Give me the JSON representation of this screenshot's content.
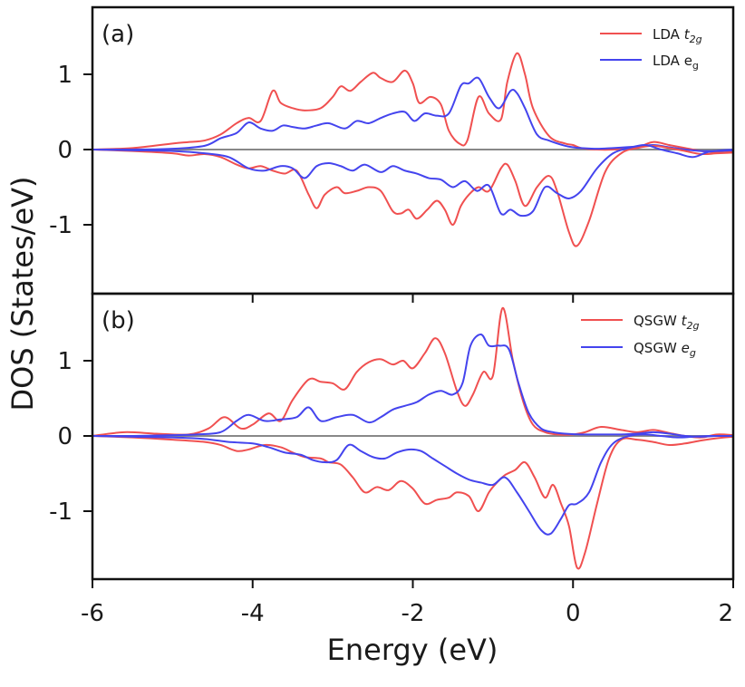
{
  "chart_data": [
    {
      "panel_label": "(a)",
      "type": "line",
      "xlim": [
        -6,
        2
      ],
      "ylim": [
        -1.85,
        1.85
      ],
      "yticks": [
        1,
        0,
        -1
      ],
      "ytick_labels": [
        "1",
        "0",
        "-1"
      ],
      "legend": {
        "placement": "top-right",
        "entries": [
          {
            "base": "LDA",
            "sub": "2g",
            "letter": "t",
            "italic": true,
            "color": "#f05050"
          },
          {
            "base": "LDA",
            "sub": "g",
            "letter": "e",
            "italic": false,
            "color": "#4444ee"
          }
        ]
      },
      "series": [
        {
          "name": "LDA t2g (up)",
          "color": "#f05050",
          "x": [
            -6.0,
            -5.5,
            -5.0,
            -4.8,
            -4.6,
            -4.4,
            -4.2,
            -4.05,
            -3.9,
            -3.75,
            -3.65,
            -3.5,
            -3.35,
            -3.15,
            -3.0,
            -2.9,
            -2.78,
            -2.65,
            -2.5,
            -2.4,
            -2.25,
            -2.1,
            -2.0,
            -1.92,
            -1.78,
            -1.65,
            -1.55,
            -1.42,
            -1.32,
            -1.18,
            -1.05,
            -0.9,
            -0.82,
            -0.7,
            -0.6,
            -0.5,
            -0.3,
            -0.1,
            0.0,
            0.1,
            0.3,
            0.5,
            0.8,
            1.0,
            1.2,
            1.4,
            1.6,
            1.8,
            2.0
          ],
          "y": [
            0.0,
            0.02,
            0.08,
            0.1,
            0.12,
            0.2,
            0.35,
            0.42,
            0.38,
            0.78,
            0.62,
            0.55,
            0.52,
            0.55,
            0.7,
            0.84,
            0.78,
            0.9,
            1.02,
            0.95,
            0.9,
            1.05,
            0.88,
            0.62,
            0.7,
            0.6,
            0.25,
            0.08,
            0.12,
            0.7,
            0.48,
            0.4,
            0.9,
            1.28,
            1.0,
            0.55,
            0.18,
            0.08,
            0.06,
            0.02,
            0.0,
            0.0,
            0.03,
            0.1,
            0.06,
            0.02,
            -0.02,
            -0.04,
            -0.03
          ]
        },
        {
          "name": "LDA eg (up)",
          "color": "#4444ee",
          "x": [
            -6.0,
            -5.5,
            -5.0,
            -4.6,
            -4.4,
            -4.2,
            -4.05,
            -3.9,
            -3.75,
            -3.62,
            -3.5,
            -3.35,
            -3.2,
            -3.05,
            -2.85,
            -2.7,
            -2.55,
            -2.4,
            -2.25,
            -2.1,
            -1.98,
            -1.85,
            -1.7,
            -1.55,
            -1.4,
            -1.3,
            -1.18,
            -1.05,
            -0.92,
            -0.78,
            -0.7,
            -0.6,
            -0.45,
            -0.3,
            -0.1,
            0.0,
            0.1,
            0.3,
            0.5,
            0.8,
            1.0,
            1.2,
            1.4,
            1.6,
            1.8,
            2.0
          ],
          "y": [
            0.0,
            0.0,
            0.01,
            0.05,
            0.15,
            0.22,
            0.36,
            0.28,
            0.25,
            0.32,
            0.3,
            0.28,
            0.32,
            0.35,
            0.28,
            0.38,
            0.35,
            0.42,
            0.48,
            0.5,
            0.38,
            0.48,
            0.45,
            0.48,
            0.85,
            0.88,
            0.95,
            0.7,
            0.55,
            0.78,
            0.75,
            0.55,
            0.2,
            0.12,
            0.05,
            0.03,
            0.02,
            0.01,
            0.02,
            0.04,
            0.06,
            0.03,
            0.0,
            -0.02,
            -0.02,
            -0.01
          ]
        },
        {
          "name": "LDA t2g (down)",
          "color": "#f05050",
          "x": [
            -6.0,
            -5.5,
            -5.0,
            -4.8,
            -4.6,
            -4.4,
            -4.2,
            -4.05,
            -3.9,
            -3.75,
            -3.6,
            -3.45,
            -3.3,
            -3.2,
            -3.1,
            -2.95,
            -2.85,
            -2.7,
            -2.55,
            -2.4,
            -2.25,
            -2.15,
            -2.05,
            -1.95,
            -1.82,
            -1.7,
            -1.6,
            -1.5,
            -1.4,
            -1.3,
            -1.18,
            -1.05,
            -0.9,
            -0.82,
            -0.72,
            -0.6,
            -0.45,
            -0.3,
            -0.2,
            -0.05,
            0.05,
            0.2,
            0.4,
            0.6,
            0.8,
            1.0,
            1.2,
            1.4,
            1.6,
            1.8,
            2.0
          ],
          "y": [
            0.0,
            -0.02,
            -0.05,
            -0.08,
            -0.06,
            -0.1,
            -0.2,
            -0.25,
            -0.22,
            -0.28,
            -0.32,
            -0.28,
            -0.6,
            -0.78,
            -0.6,
            -0.5,
            -0.58,
            -0.55,
            -0.5,
            -0.55,
            -0.82,
            -0.85,
            -0.8,
            -0.92,
            -0.8,
            -0.68,
            -0.8,
            -1.0,
            -0.75,
            -0.6,
            -0.5,
            -0.55,
            -0.25,
            -0.2,
            -0.42,
            -0.75,
            -0.5,
            -0.35,
            -0.55,
            -1.1,
            -1.28,
            -0.95,
            -0.3,
            -0.05,
            0.02,
            0.05,
            0.02,
            -0.02,
            -0.06,
            -0.05,
            -0.04
          ]
        },
        {
          "name": "LDA eg (down)",
          "color": "#4444ee",
          "x": [
            -6.0,
            -5.5,
            -5.0,
            -4.6,
            -4.3,
            -4.05,
            -3.85,
            -3.65,
            -3.5,
            -3.35,
            -3.2,
            -3.05,
            -2.9,
            -2.75,
            -2.6,
            -2.4,
            -2.25,
            -2.1,
            -1.95,
            -1.8,
            -1.65,
            -1.5,
            -1.35,
            -1.2,
            -1.05,
            -0.9,
            -0.78,
            -0.65,
            -0.5,
            -0.35,
            -0.2,
            -0.05,
            0.1,
            0.3,
            0.5,
            0.7,
            0.9,
            1.1,
            1.3,
            1.5,
            1.7,
            2.0
          ],
          "y": [
            0.0,
            -0.01,
            -0.02,
            -0.05,
            -0.1,
            -0.25,
            -0.28,
            -0.22,
            -0.25,
            -0.38,
            -0.22,
            -0.18,
            -0.22,
            -0.28,
            -0.2,
            -0.3,
            -0.22,
            -0.28,
            -0.32,
            -0.38,
            -0.4,
            -0.5,
            -0.42,
            -0.55,
            -0.48,
            -0.85,
            -0.8,
            -0.88,
            -0.82,
            -0.5,
            -0.58,
            -0.65,
            -0.55,
            -0.25,
            -0.05,
            0.02,
            0.06,
            0.0,
            -0.05,
            -0.1,
            -0.03,
            0.0
          ]
        }
      ]
    },
    {
      "panel_label": "(b)",
      "type": "line",
      "xlim": [
        -6,
        2
      ],
      "ylim": [
        -1.92,
        1.92
      ],
      "yticks": [
        1,
        0,
        -1
      ],
      "ytick_labels": [
        "1",
        "0",
        "-1"
      ],
      "xticks": [
        -6,
        -4,
        -2,
        0,
        2
      ],
      "xtick_labels": [
        "-6",
        "-4",
        "-2",
        "0",
        "2"
      ],
      "xlabel": "Energy (eV)",
      "ylabel": "DOS (States/eV)",
      "legend": {
        "placement": "top-right",
        "entries": [
          {
            "base": "QSGW",
            "sub": "2g",
            "letter": "t",
            "italic": true,
            "color": "#f05050"
          },
          {
            "base": "QSGW",
            "sub": "g",
            "letter": "e",
            "italic": true,
            "color": "#4444ee"
          }
        ]
      },
      "series": [
        {
          "name": "QSGW t2g (up)",
          "color": "#f05050",
          "x": [
            -6.0,
            -5.6,
            -5.2,
            -4.8,
            -4.55,
            -4.35,
            -4.15,
            -4.0,
            -3.8,
            -3.65,
            -3.5,
            -3.3,
            -3.15,
            -3.0,
            -2.85,
            -2.7,
            -2.55,
            -2.4,
            -2.25,
            -2.12,
            -2.0,
            -1.85,
            -1.72,
            -1.6,
            -1.45,
            -1.35,
            -1.25,
            -1.12,
            -1.0,
            -0.88,
            -0.75,
            -0.62,
            -0.5,
            -0.35,
            -0.2,
            0.0,
            0.15,
            0.35,
            0.6,
            0.8,
            1.0,
            1.2,
            1.4,
            1.6,
            1.8,
            2.0
          ],
          "y": [
            0.0,
            0.05,
            0.03,
            0.02,
            0.1,
            0.25,
            0.1,
            0.15,
            0.3,
            0.2,
            0.48,
            0.75,
            0.72,
            0.7,
            0.62,
            0.85,
            0.98,
            1.02,
            0.95,
            1.0,
            0.9,
            1.1,
            1.3,
            1.1,
            0.6,
            0.4,
            0.55,
            0.85,
            0.8,
            1.7,
            1.0,
            0.45,
            0.15,
            0.05,
            0.02,
            0.02,
            0.05,
            0.12,
            0.08,
            0.05,
            0.08,
            0.04,
            0.0,
            -0.02,
            0.02,
            0.01
          ]
        },
        {
          "name": "QSGW eg (up)",
          "color": "#4444ee",
          "x": [
            -6.0,
            -5.5,
            -5.0,
            -4.7,
            -4.4,
            -4.2,
            -4.05,
            -3.85,
            -3.65,
            -3.45,
            -3.3,
            -3.15,
            -2.95,
            -2.75,
            -2.55,
            -2.4,
            -2.25,
            -2.1,
            -1.95,
            -1.8,
            -1.65,
            -1.5,
            -1.38,
            -1.28,
            -1.15,
            -1.05,
            -0.92,
            -0.8,
            -0.68,
            -0.55,
            -0.4,
            -0.25,
            -0.1,
            0.1,
            0.3,
            0.6,
            0.8,
            1.0,
            1.2,
            1.4,
            1.6,
            1.8,
            2.0
          ],
          "y": [
            0.0,
            0.0,
            0.01,
            0.02,
            0.05,
            0.2,
            0.28,
            0.2,
            0.22,
            0.25,
            0.38,
            0.2,
            0.25,
            0.28,
            0.18,
            0.25,
            0.35,
            0.4,
            0.45,
            0.55,
            0.6,
            0.55,
            0.7,
            1.2,
            1.35,
            1.2,
            1.2,
            1.15,
            0.7,
            0.3,
            0.1,
            0.05,
            0.03,
            0.02,
            0.02,
            0.02,
            0.03,
            0.05,
            0.03,
            0.0,
            -0.01,
            0.0,
            0.0
          ]
        },
        {
          "name": "QSGW t2g (down)",
          "color": "#f05050",
          "x": [
            -6.0,
            -5.5,
            -5.0,
            -4.6,
            -4.4,
            -4.2,
            -4.05,
            -3.85,
            -3.65,
            -3.5,
            -3.35,
            -3.15,
            -3.05,
            -2.9,
            -2.75,
            -2.6,
            -2.45,
            -2.3,
            -2.15,
            -2.0,
            -1.85,
            -1.7,
            -1.55,
            -1.45,
            -1.3,
            -1.18,
            -1.05,
            -0.95,
            -0.85,
            -0.72,
            -0.6,
            -0.48,
            -0.35,
            -0.25,
            -0.15,
            -0.05,
            0.05,
            0.15,
            0.3,
            0.45,
            0.6,
            0.8,
            1.0,
            1.2,
            1.4,
            1.6,
            1.8,
            2.0
          ],
          "y": [
            0.0,
            -0.02,
            -0.05,
            -0.08,
            -0.12,
            -0.2,
            -0.18,
            -0.12,
            -0.15,
            -0.22,
            -0.28,
            -0.3,
            -0.35,
            -0.38,
            -0.55,
            -0.75,
            -0.68,
            -0.72,
            -0.6,
            -0.7,
            -0.9,
            -0.85,
            -0.82,
            -0.75,
            -0.8,
            -1.0,
            -0.75,
            -0.62,
            -0.52,
            -0.45,
            -0.35,
            -0.55,
            -0.82,
            -0.65,
            -0.9,
            -1.2,
            -1.75,
            -1.55,
            -0.9,
            -0.3,
            -0.05,
            -0.05,
            -0.08,
            -0.12,
            -0.1,
            -0.06,
            -0.03,
            -0.01
          ]
        },
        {
          "name": "QSGW eg (down)",
          "color": "#4444ee",
          "x": [
            -6.0,
            -5.5,
            -5.0,
            -4.6,
            -4.3,
            -4.0,
            -3.8,
            -3.6,
            -3.4,
            -3.25,
            -3.1,
            -2.95,
            -2.8,
            -2.65,
            -2.5,
            -2.35,
            -2.2,
            -2.05,
            -1.9,
            -1.75,
            -1.6,
            -1.45,
            -1.3,
            -1.15,
            -1.0,
            -0.85,
            -0.7,
            -0.55,
            -0.4,
            -0.28,
            -0.15,
            -0.05,
            0.05,
            0.2,
            0.35,
            0.5,
            0.7,
            0.9,
            1.1,
            1.3,
            1.5,
            1.7,
            2.0
          ],
          "y": [
            0.0,
            -0.01,
            -0.02,
            -0.04,
            -0.08,
            -0.1,
            -0.15,
            -0.22,
            -0.25,
            -0.32,
            -0.35,
            -0.32,
            -0.12,
            -0.2,
            -0.28,
            -0.3,
            -0.22,
            -0.18,
            -0.2,
            -0.3,
            -0.4,
            -0.5,
            -0.58,
            -0.62,
            -0.65,
            -0.55,
            -0.75,
            -1.0,
            -1.25,
            -1.3,
            -1.1,
            -0.92,
            -0.9,
            -0.75,
            -0.35,
            -0.1,
            0.0,
            0.02,
            0.0,
            -0.02,
            -0.01,
            0.0,
            0.0
          ]
        }
      ]
    }
  ]
}
